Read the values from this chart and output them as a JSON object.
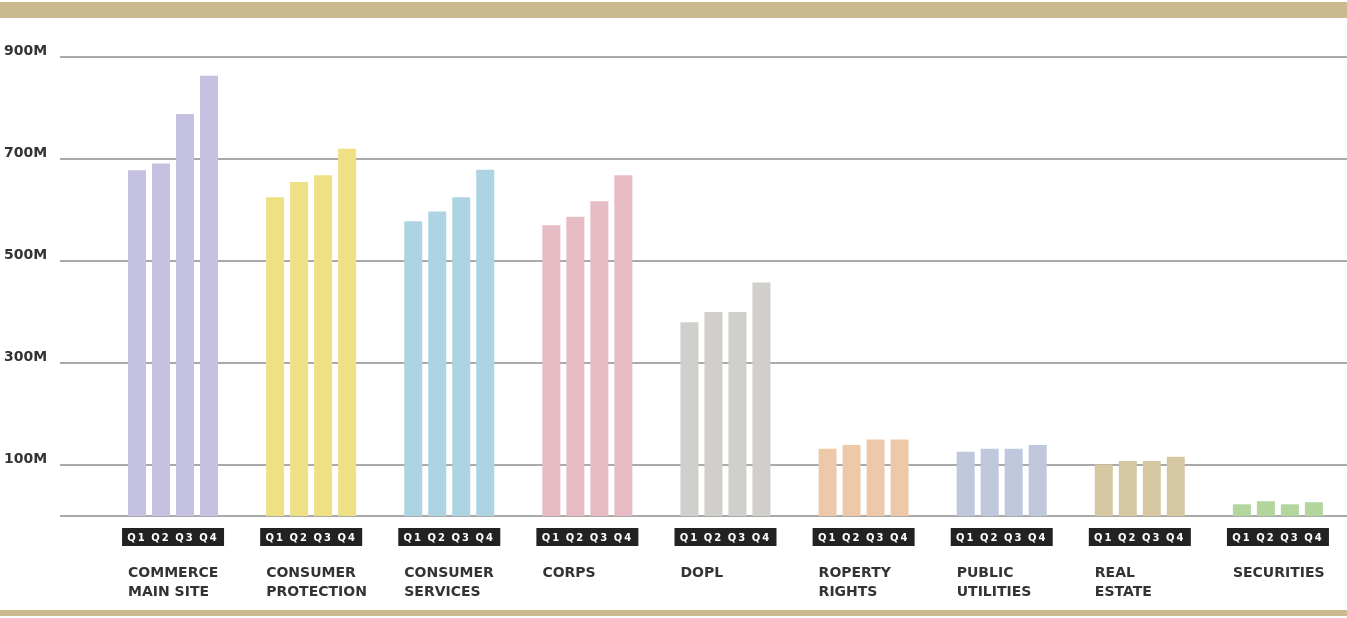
{
  "chart_data": {
    "type": "bar",
    "categories": [
      "COMMERCE MAIN SITE",
      "CONSUMER PROTECTION",
      "CONSUMER SERVICES",
      "CORPS",
      "DOPL",
      "ROPERTY RIGHTS",
      "PUBLIC UTILITIES",
      "REAL ESTATE",
      "SECURITIES"
    ],
    "series": [
      {
        "name": "Q1",
        "colors": [
          "#c5c1e0",
          "#f0e084",
          "#aed3e3",
          "#e8bcc4",
          "#d0cfcb",
          "#edc9a9",
          "#bfc7dc",
          "#d5c7a1",
          "#b2d69e"
        ],
        "values": [
          678,
          625,
          578,
          570,
          380,
          132,
          126,
          101,
          23
        ]
      },
      {
        "name": "Q2",
        "colors": [
          "#c5c1e0",
          "#f0e084",
          "#aed3e3",
          "#e8bcc4",
          "#d0cfcb",
          "#edc9a9",
          "#bfc7dc",
          "#d5c7a1",
          "#b2d69e"
        ],
        "values": [
          691,
          655,
          597,
          587,
          400,
          139,
          132,
          108,
          29
        ]
      },
      {
        "name": "Q3",
        "colors": [
          "#c5c1e0",
          "#f0e084",
          "#aed3e3",
          "#e8bcc4",
          "#d0cfcb",
          "#edc9a9",
          "#bfc7dc",
          "#d5c7a1",
          "#b2d69e"
        ],
        "values": [
          788,
          668,
          625,
          617,
          400,
          150,
          132,
          108,
          23
        ]
      },
      {
        "name": "Q4",
        "colors": [
          "#c5c1e0",
          "#f0e084",
          "#aed3e3",
          "#e8bcc4",
          "#d0cfcb",
          "#edc9a9",
          "#bfc7dc",
          "#d5c7a1",
          "#b2d69e"
        ],
        "values": [
          863,
          720,
          679,
          668,
          458,
          150,
          139,
          116,
          27
        ]
      }
    ],
    "ylim": [
      0,
      900
    ],
    "yticks": [
      {
        "value": 100,
        "label": "100M"
      },
      {
        "value": 300,
        "label": "300M"
      },
      {
        "value": 500,
        "label": "500M"
      },
      {
        "value": 700,
        "label": "700M"
      },
      {
        "value": 900,
        "label": "900M"
      }
    ],
    "grid": "y"
  }
}
